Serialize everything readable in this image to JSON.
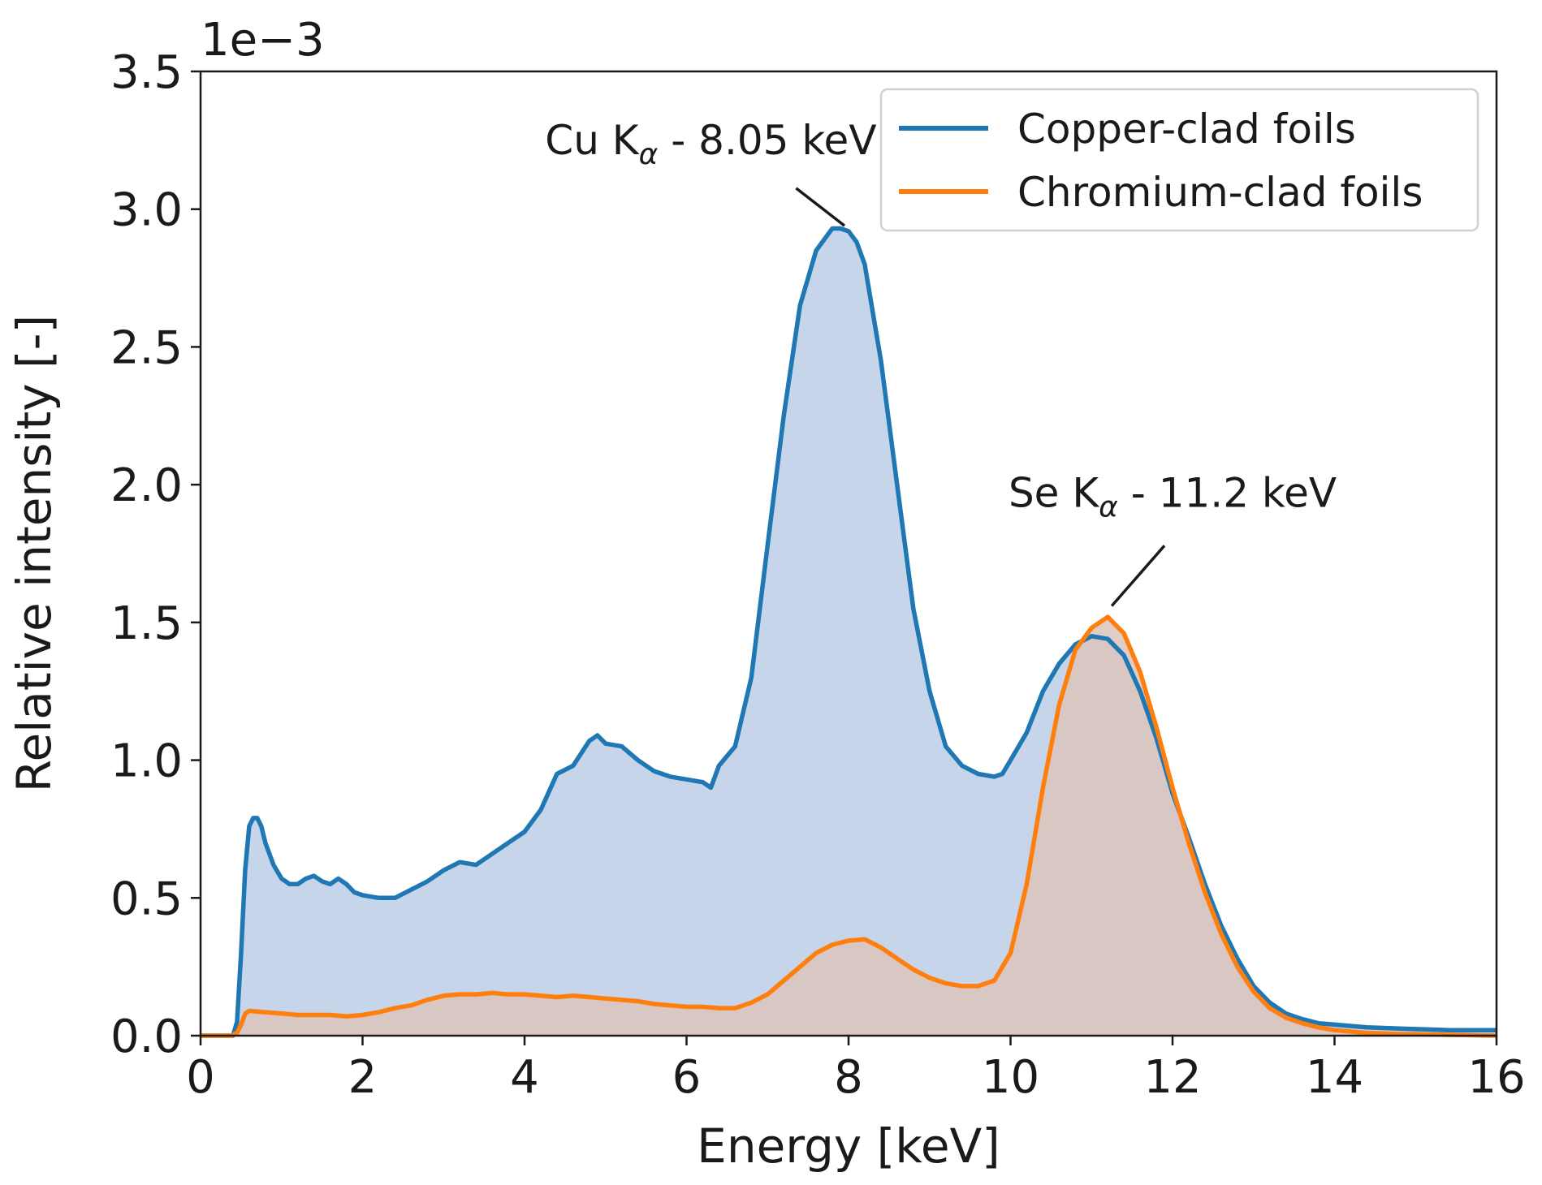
{
  "chart_data": {
    "type": "area",
    "title": "",
    "xlabel": "Energy [keV]",
    "ylabel": "Relative intensity [-]",
    "y_scale_label": "1e−3",
    "xlim": [
      0,
      16
    ],
    "ylim": [
      0,
      3.5
    ],
    "x_ticks": [
      0,
      2,
      4,
      6,
      8,
      10,
      12,
      14,
      16
    ],
    "x_tick_labels": [
      "0",
      "2",
      "4",
      "6",
      "8",
      "10",
      "12",
      "14",
      "16"
    ],
    "y_ticks": [
      0,
      0.5,
      1.0,
      1.5,
      2.0,
      2.5,
      3.0,
      3.5
    ],
    "y_tick_labels": [
      "0.0",
      "0.5",
      "1.0",
      "1.5",
      "2.0",
      "2.5",
      "3.0",
      "3.5"
    ],
    "legend_position": "top-right",
    "series": [
      {
        "name": "Copper-clad foils",
        "color": "#1f77b4",
        "fill_color": "#c6d5ea",
        "x": [
          0,
          0.4,
          0.45,
          0.5,
          0.55,
          0.6,
          0.65,
          0.7,
          0.75,
          0.8,
          0.9,
          1.0,
          1.1,
          1.2,
          1.3,
          1.4,
          1.5,
          1.6,
          1.7,
          1.8,
          1.9,
          2.0,
          2.2,
          2.4,
          2.6,
          2.8,
          3.0,
          3.2,
          3.4,
          3.6,
          3.8,
          4.0,
          4.2,
          4.4,
          4.6,
          4.8,
          4.9,
          5.0,
          5.2,
          5.4,
          5.6,
          5.8,
          6.0,
          6.2,
          6.3,
          6.4,
          6.6,
          6.8,
          7.0,
          7.2,
          7.4,
          7.6,
          7.8,
          7.9,
          8.0,
          8.1,
          8.2,
          8.4,
          8.6,
          8.8,
          9.0,
          9.2,
          9.4,
          9.6,
          9.8,
          9.9,
          10.0,
          10.2,
          10.4,
          10.6,
          10.8,
          11.0,
          11.2,
          11.4,
          11.6,
          11.8,
          12.0,
          12.2,
          12.4,
          12.6,
          12.8,
          13.0,
          13.2,
          13.4,
          13.6,
          13.8,
          14.0,
          14.2,
          14.4,
          14.6,
          14.8,
          15.0,
          15.2,
          15.4,
          15.6,
          15.8,
          16.0
        ],
        "values": [
          0,
          0,
          0.05,
          0.3,
          0.6,
          0.76,
          0.79,
          0.79,
          0.76,
          0.7,
          0.62,
          0.57,
          0.55,
          0.55,
          0.57,
          0.58,
          0.56,
          0.55,
          0.57,
          0.55,
          0.52,
          0.51,
          0.5,
          0.5,
          0.53,
          0.56,
          0.6,
          0.63,
          0.62,
          0.66,
          0.7,
          0.74,
          0.82,
          0.95,
          0.98,
          1.07,
          1.09,
          1.06,
          1.05,
          1.0,
          0.96,
          0.94,
          0.93,
          0.92,
          0.9,
          0.98,
          1.05,
          1.3,
          1.78,
          2.25,
          2.65,
          2.85,
          2.93,
          2.93,
          2.92,
          2.88,
          2.8,
          2.45,
          2.0,
          1.55,
          1.25,
          1.05,
          0.98,
          0.95,
          0.94,
          0.95,
          1.0,
          1.1,
          1.25,
          1.35,
          1.42,
          1.45,
          1.44,
          1.38,
          1.25,
          1.08,
          0.88,
          0.72,
          0.55,
          0.4,
          0.28,
          0.18,
          0.12,
          0.08,
          0.06,
          0.045,
          0.04,
          0.035,
          0.03,
          0.028,
          0.026,
          0.024,
          0.022,
          0.02,
          0.02,
          0.02,
          0.02
        ]
      },
      {
        "name": "Chromium-clad foils",
        "color": "#ff7f0e",
        "fill_color": "#dcc4bc",
        "x": [
          0,
          0.38,
          0.45,
          0.5,
          0.55,
          0.6,
          0.8,
          1.0,
          1.2,
          1.4,
          1.6,
          1.8,
          2.0,
          2.2,
          2.4,
          2.6,
          2.8,
          3.0,
          3.2,
          3.4,
          3.6,
          3.8,
          4.0,
          4.2,
          4.4,
          4.6,
          4.8,
          5.0,
          5.2,
          5.4,
          5.6,
          5.8,
          6.0,
          6.2,
          6.4,
          6.6,
          6.8,
          7.0,
          7.2,
          7.4,
          7.6,
          7.8,
          8.0,
          8.2,
          8.4,
          8.6,
          8.8,
          9.0,
          9.2,
          9.4,
          9.6,
          9.8,
          10.0,
          10.2,
          10.4,
          10.6,
          10.8,
          11.0,
          11.2,
          11.4,
          11.6,
          11.8,
          12.0,
          12.2,
          12.4,
          12.6,
          12.8,
          13.0,
          13.2,
          13.4,
          13.6,
          13.8,
          14.0,
          14.2,
          14.4,
          14.6,
          14.8,
          15.0,
          15.2,
          15.4,
          15.6,
          15.8,
          16.0
        ],
        "values": [
          0,
          0,
          0.01,
          0.04,
          0.08,
          0.09,
          0.085,
          0.08,
          0.075,
          0.075,
          0.075,
          0.07,
          0.075,
          0.085,
          0.1,
          0.11,
          0.13,
          0.145,
          0.15,
          0.15,
          0.155,
          0.15,
          0.15,
          0.145,
          0.14,
          0.145,
          0.14,
          0.135,
          0.13,
          0.125,
          0.115,
          0.11,
          0.105,
          0.105,
          0.1,
          0.1,
          0.12,
          0.15,
          0.2,
          0.25,
          0.3,
          0.33,
          0.345,
          0.35,
          0.32,
          0.28,
          0.24,
          0.21,
          0.19,
          0.18,
          0.18,
          0.2,
          0.3,
          0.55,
          0.9,
          1.2,
          1.4,
          1.48,
          1.52,
          1.46,
          1.32,
          1.12,
          0.9,
          0.7,
          0.52,
          0.37,
          0.25,
          0.16,
          0.1,
          0.065,
          0.045,
          0.03,
          0.02,
          0.015,
          0.01,
          0.008,
          0.006,
          0.005,
          0.004,
          0.003,
          0.002,
          0.001,
          0
        ]
      }
    ],
    "annotations": [
      {
        "text_main": "Cu K",
        "text_sub": "α",
        "text_rest": " - 8.05 keV",
        "xy": [
          7.95,
          2.94
        ],
        "xytext": [
          6.3,
          3.2
        ]
      },
      {
        "text_main": "Se K",
        "text_sub": "α",
        "text_rest": " - 11.2 keV",
        "xy": [
          11.25,
          1.56
        ],
        "xytext": [
          12.0,
          1.92
        ]
      }
    ]
  }
}
